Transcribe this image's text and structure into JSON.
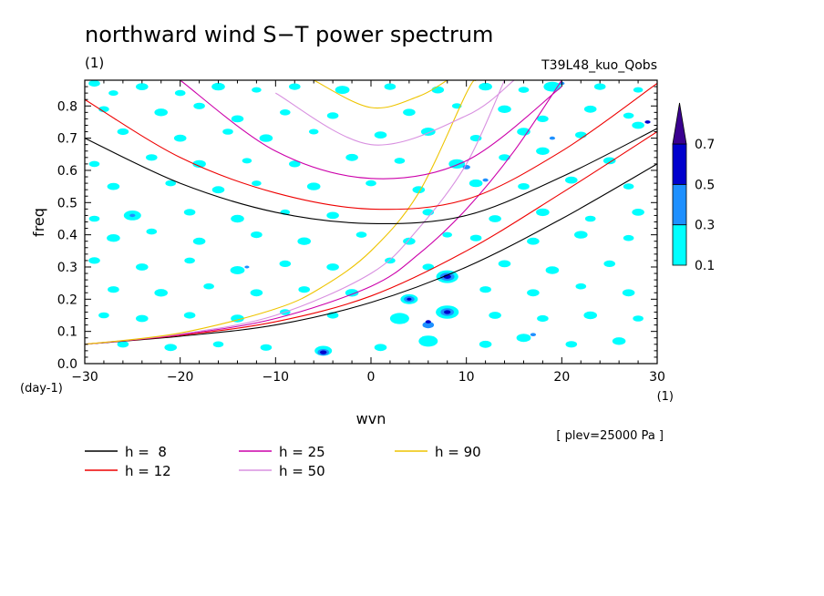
{
  "chart_data": {
    "type": "contour",
    "title": "northward wind S−T power spectrum",
    "subtitle": "(1)",
    "run_label": "T39L48_kuo_Qobs",
    "level_note": "[ plev=25000 Pa ]",
    "xlabel": "wvn",
    "x_unit": "(1)",
    "ylabel": "freq",
    "y_unit": "(day-1)",
    "xlim": [
      -30,
      30
    ],
    "ylim": [
      0,
      0.88
    ],
    "x_ticks": [
      {
        "value": -30,
        "label": "−30"
      },
      {
        "value": -20,
        "label": "−20"
      },
      {
        "value": -10,
        "label": "−10"
      },
      {
        "value": 0,
        "label": "0"
      },
      {
        "value": 10,
        "label": "10"
      },
      {
        "value": 20,
        "label": "20"
      },
      {
        "value": 30,
        "label": "30"
      }
    ],
    "y_ticks": [
      {
        "value": 0.0,
        "label": "0.0"
      },
      {
        "value": 0.1,
        "label": "0.1"
      },
      {
        "value": 0.2,
        "label": "0.2"
      },
      {
        "value": 0.3,
        "label": "0.3"
      },
      {
        "value": 0.4,
        "label": "0.4"
      },
      {
        "value": 0.5,
        "label": "0.5"
      },
      {
        "value": 0.6,
        "label": "0.6"
      },
      {
        "value": 0.7,
        "label": "0.7"
      },
      {
        "value": 0.8,
        "label": "0.8"
      }
    ],
    "colorbar": {
      "levels": [
        {
          "value": 0.1,
          "label": "0.1"
        },
        {
          "value": 0.3,
          "label": "0.3"
        },
        {
          "value": 0.5,
          "label": "0.5"
        },
        {
          "value": 0.7,
          "label": "0.7"
        }
      ],
      "colors": [
        "#00ffff",
        "#1e90ff",
        "#0000cd",
        "#3a0090"
      ]
    },
    "dispersion_curves": [
      {
        "name": "h =  8",
        "color": "#000000"
      },
      {
        "name": "h = 12",
        "color": "#ee0000"
      },
      {
        "name": "h = 25",
        "color": "#cc00aa"
      },
      {
        "name": "h = 50",
        "color": "#d890e0"
      },
      {
        "name": "h = 90",
        "color": "#eec400"
      }
    ],
    "curve_points": {
      "h8_rossby_gravity": [
        [
          -30,
          0.06
        ],
        [
          -20,
          0.085
        ],
        [
          -10,
          0.12
        ],
        [
          0,
          0.19
        ],
        [
          10,
          0.3
        ],
        [
          20,
          0.45
        ],
        [
          30,
          0.62
        ]
      ],
      "h12_rossby_gravity": [
        [
          -30,
          0.06
        ],
        [
          -20,
          0.088
        ],
        [
          -10,
          0.13
        ],
        [
          0,
          0.21
        ],
        [
          10,
          0.35
        ],
        [
          20,
          0.53
        ],
        [
          30,
          0.72
        ]
      ],
      "h25_rossby_gravity": [
        [
          -30,
          0.06
        ],
        [
          -20,
          0.09
        ],
        [
          -10,
          0.14
        ],
        [
          0,
          0.24
        ],
        [
          5,
          0.34
        ],
        [
          10,
          0.48
        ],
        [
          15,
          0.66
        ],
        [
          20,
          0.88
        ]
      ],
      "h50_rossby_gravity": [
        [
          -30,
          0.06
        ],
        [
          -20,
          0.092
        ],
        [
          -10,
          0.15
        ],
        [
          0,
          0.28
        ],
        [
          5,
          0.42
        ],
        [
          10,
          0.62
        ],
        [
          14,
          0.88
        ]
      ],
      "h90_rossby_gravity": [
        [
          -30,
          0.06
        ],
        [
          -20,
          0.095
        ],
        [
          -10,
          0.17
        ],
        [
          -5,
          0.24
        ],
        [
          0,
          0.35
        ],
        [
          5,
          0.53
        ],
        [
          10,
          0.84
        ],
        [
          11,
          0.88
        ]
      ],
      "h8_inertia_gravity": [
        [
          -30,
          0.7
        ],
        [
          -20,
          0.56
        ],
        [
          -10,
          0.47
        ],
        [
          0,
          0.435
        ],
        [
          10,
          0.46
        ],
        [
          20,
          0.58
        ],
        [
          30,
          0.73
        ]
      ],
      "h12_inertia_gravity": [
        [
          -30,
          0.82
        ],
        [
          -20,
          0.64
        ],
        [
          -10,
          0.53
        ],
        [
          0,
          0.48
        ],
        [
          10,
          0.51
        ],
        [
          20,
          0.66
        ],
        [
          30,
          0.87
        ]
      ],
      "h25_inertia_gravity": [
        [
          -20,
          0.88
        ],
        [
          -10,
          0.66
        ],
        [
          0,
          0.575
        ],
        [
          10,
          0.63
        ],
        [
          20,
          0.86
        ]
      ],
      "h50_inertia_gravity": [
        [
          -10,
          0.84
        ],
        [
          0,
          0.68
        ],
        [
          10,
          0.77
        ],
        [
          15,
          0.88
        ]
      ],
      "h90_inertia_gravity": [
        [
          -6,
          0.88
        ],
        [
          0,
          0.795
        ],
        [
          5,
          0.83
        ],
        [
          8,
          0.88
        ]
      ]
    },
    "blobs": [
      {
        "x": -29,
        "y": 0.87,
        "r": 1.2,
        "lvl": 0
      },
      {
        "x": -27,
        "y": 0.84,
        "r": 1.0,
        "lvl": 0
      },
      {
        "x": -24,
        "y": 0.86,
        "r": 1.3,
        "lvl": 0
      },
      {
        "x": -20,
        "y": 0.84,
        "r": 1.1,
        "lvl": 0
      },
      {
        "x": -16,
        "y": 0.86,
        "r": 1.4,
        "lvl": 0
      },
      {
        "x": -12,
        "y": 0.85,
        "r": 1.0,
        "lvl": 0
      },
      {
        "x": -8,
        "y": 0.86,
        "r": 1.2,
        "lvl": 0
      },
      {
        "x": -3,
        "y": 0.85,
        "r": 1.5,
        "lvl": 0
      },
      {
        "x": 2,
        "y": 0.86,
        "r": 1.2,
        "lvl": 0
      },
      {
        "x": 7,
        "y": 0.85,
        "r": 1.3,
        "lvl": 0
      },
      {
        "x": 12,
        "y": 0.86,
        "r": 1.4,
        "lvl": 0
      },
      {
        "x": 16,
        "y": 0.85,
        "r": 1.1,
        "lvl": 0
      },
      {
        "x": 19,
        "y": 0.86,
        "r": 1.8,
        "lvl": 0
      },
      {
        "x": 20,
        "y": 0.87,
        "r": 0.6,
        "lvl": 1
      },
      {
        "x": 24,
        "y": 0.86,
        "r": 1.2,
        "lvl": 0
      },
      {
        "x": 28,
        "y": 0.85,
        "r": 1.0,
        "lvl": 0
      },
      {
        "x": -28,
        "y": 0.79,
        "r": 1.1,
        "lvl": 0
      },
      {
        "x": -22,
        "y": 0.78,
        "r": 1.4,
        "lvl": 0
      },
      {
        "x": -18,
        "y": 0.8,
        "r": 1.2,
        "lvl": 0
      },
      {
        "x": -14,
        "y": 0.76,
        "r": 1.3,
        "lvl": 0
      },
      {
        "x": -9,
        "y": 0.78,
        "r": 1.1,
        "lvl": 0
      },
      {
        "x": -4,
        "y": 0.77,
        "r": 1.2,
        "lvl": 0
      },
      {
        "x": 4,
        "y": 0.78,
        "r": 1.3,
        "lvl": 0
      },
      {
        "x": 9,
        "y": 0.8,
        "r": 1.0,
        "lvl": 0
      },
      {
        "x": 14,
        "y": 0.79,
        "r": 1.4,
        "lvl": 0
      },
      {
        "x": 18,
        "y": 0.76,
        "r": 1.2,
        "lvl": 0
      },
      {
        "x": 23,
        "y": 0.79,
        "r": 1.3,
        "lvl": 0
      },
      {
        "x": 27,
        "y": 0.77,
        "r": 1.1,
        "lvl": 0
      },
      {
        "x": -26,
        "y": 0.72,
        "r": 1.2,
        "lvl": 0
      },
      {
        "x": -20,
        "y": 0.7,
        "r": 1.3,
        "lvl": 0
      },
      {
        "x": -15,
        "y": 0.72,
        "r": 1.1,
        "lvl": 0
      },
      {
        "x": -11,
        "y": 0.7,
        "r": 1.4,
        "lvl": 0
      },
      {
        "x": -6,
        "y": 0.72,
        "r": 1.0,
        "lvl": 0
      },
      {
        "x": 1,
        "y": 0.71,
        "r": 1.3,
        "lvl": 0
      },
      {
        "x": 6,
        "y": 0.72,
        "r": 1.5,
        "lvl": 0
      },
      {
        "x": 11,
        "y": 0.7,
        "r": 1.2,
        "lvl": 0
      },
      {
        "x": 16,
        "y": 0.72,
        "r": 1.4,
        "lvl": 0
      },
      {
        "x": 19,
        "y": 0.7,
        "r": 0.6,
        "lvl": 1
      },
      {
        "x": 22,
        "y": 0.71,
        "r": 1.2,
        "lvl": 0
      },
      {
        "x": 28,
        "y": 0.74,
        "r": 1.3,
        "lvl": 0
      },
      {
        "x": 29,
        "y": 0.75,
        "r": 0.6,
        "lvl": 2
      },
      {
        "x": -29,
        "y": 0.62,
        "r": 1.1,
        "lvl": 0
      },
      {
        "x": -23,
        "y": 0.64,
        "r": 1.2,
        "lvl": 0
      },
      {
        "x": -18,
        "y": 0.62,
        "r": 1.4,
        "lvl": 0
      },
      {
        "x": -13,
        "y": 0.63,
        "r": 1.0,
        "lvl": 0
      },
      {
        "x": -8,
        "y": 0.62,
        "r": 1.2,
        "lvl": 0
      },
      {
        "x": -2,
        "y": 0.64,
        "r": 1.3,
        "lvl": 0
      },
      {
        "x": 3,
        "y": 0.63,
        "r": 1.1,
        "lvl": 0
      },
      {
        "x": 9,
        "y": 0.62,
        "r": 1.7,
        "lvl": 0
      },
      {
        "x": 10,
        "y": 0.61,
        "r": 0.8,
        "lvl": 1
      },
      {
        "x": 14,
        "y": 0.64,
        "r": 1.2,
        "lvl": 0
      },
      {
        "x": 18,
        "y": 0.66,
        "r": 1.4,
        "lvl": 0
      },
      {
        "x": 25,
        "y": 0.63,
        "r": 1.3,
        "lvl": 0
      },
      {
        "x": -27,
        "y": 0.55,
        "r": 1.3,
        "lvl": 0
      },
      {
        "x": -21,
        "y": 0.56,
        "r": 1.1,
        "lvl": 0
      },
      {
        "x": -16,
        "y": 0.54,
        "r": 1.3,
        "lvl": 0
      },
      {
        "x": -12,
        "y": 0.56,
        "r": 1.0,
        "lvl": 0
      },
      {
        "x": -6,
        "y": 0.55,
        "r": 1.4,
        "lvl": 0
      },
      {
        "x": 0,
        "y": 0.56,
        "r": 1.1,
        "lvl": 0
      },
      {
        "x": 5,
        "y": 0.54,
        "r": 1.3,
        "lvl": 0
      },
      {
        "x": 11,
        "y": 0.56,
        "r": 1.4,
        "lvl": 0
      },
      {
        "x": 12,
        "y": 0.57,
        "r": 0.6,
        "lvl": 1
      },
      {
        "x": 16,
        "y": 0.55,
        "r": 1.2,
        "lvl": 0
      },
      {
        "x": 21,
        "y": 0.57,
        "r": 1.3,
        "lvl": 0
      },
      {
        "x": 27,
        "y": 0.55,
        "r": 1.1,
        "lvl": 0
      },
      {
        "x": -29,
        "y": 0.45,
        "r": 1.1,
        "lvl": 0
      },
      {
        "x": -25,
        "y": 0.46,
        "r": 1.8,
        "lvl": 0
      },
      {
        "x": -25,
        "y": 0.46,
        "r": 0.6,
        "lvl": 1
      },
      {
        "x": -19,
        "y": 0.47,
        "r": 1.2,
        "lvl": 0
      },
      {
        "x": -14,
        "y": 0.45,
        "r": 1.4,
        "lvl": 0
      },
      {
        "x": -9,
        "y": 0.47,
        "r": 1.0,
        "lvl": 0
      },
      {
        "x": -4,
        "y": 0.46,
        "r": 1.3,
        "lvl": 0
      },
      {
        "x": 6,
        "y": 0.47,
        "r": 1.2,
        "lvl": 0
      },
      {
        "x": 13,
        "y": 0.45,
        "r": 1.3,
        "lvl": 0
      },
      {
        "x": 18,
        "y": 0.47,
        "r": 1.4,
        "lvl": 0
      },
      {
        "x": 23,
        "y": 0.45,
        "r": 1.1,
        "lvl": 0
      },
      {
        "x": 28,
        "y": 0.47,
        "r": 1.3,
        "lvl": 0
      },
      {
        "x": -27,
        "y": 0.39,
        "r": 1.4,
        "lvl": 0
      },
      {
        "x": -23,
        "y": 0.41,
        "r": 1.1,
        "lvl": 0
      },
      {
        "x": -18,
        "y": 0.38,
        "r": 1.3,
        "lvl": 0
      },
      {
        "x": -12,
        "y": 0.4,
        "r": 1.2,
        "lvl": 0
      },
      {
        "x": -7,
        "y": 0.38,
        "r": 1.4,
        "lvl": 0
      },
      {
        "x": -1,
        "y": 0.4,
        "r": 1.1,
        "lvl": 0
      },
      {
        "x": 4,
        "y": 0.38,
        "r": 1.3,
        "lvl": 0
      },
      {
        "x": 8,
        "y": 0.4,
        "r": 1.0,
        "lvl": 0
      },
      {
        "x": 11,
        "y": 0.39,
        "r": 1.2,
        "lvl": 0
      },
      {
        "x": 17,
        "y": 0.38,
        "r": 1.3,
        "lvl": 0
      },
      {
        "x": 22,
        "y": 0.4,
        "r": 1.4,
        "lvl": 0
      },
      {
        "x": 27,
        "y": 0.39,
        "r": 1.1,
        "lvl": 0
      },
      {
        "x": -29,
        "y": 0.32,
        "r": 1.2,
        "lvl": 0
      },
      {
        "x": -24,
        "y": 0.3,
        "r": 1.3,
        "lvl": 0
      },
      {
        "x": -19,
        "y": 0.32,
        "r": 1.1,
        "lvl": 0
      },
      {
        "x": -14,
        "y": 0.29,
        "r": 1.5,
        "lvl": 0
      },
      {
        "x": -13,
        "y": 0.3,
        "r": 0.5,
        "lvl": 1
      },
      {
        "x": -9,
        "y": 0.31,
        "r": 1.2,
        "lvl": 0
      },
      {
        "x": -4,
        "y": 0.3,
        "r": 1.3,
        "lvl": 0
      },
      {
        "x": 2,
        "y": 0.32,
        "r": 1.1,
        "lvl": 0
      },
      {
        "x": 6,
        "y": 0.3,
        "r": 1.2,
        "lvl": 0
      },
      {
        "x": 14,
        "y": 0.31,
        "r": 1.3,
        "lvl": 0
      },
      {
        "x": 19,
        "y": 0.29,
        "r": 1.4,
        "lvl": 0
      },
      {
        "x": 25,
        "y": 0.31,
        "r": 1.2,
        "lvl": 0
      },
      {
        "x": -27,
        "y": 0.23,
        "r": 1.2,
        "lvl": 0
      },
      {
        "x": -22,
        "y": 0.22,
        "r": 1.4,
        "lvl": 0
      },
      {
        "x": -17,
        "y": 0.24,
        "r": 1.1,
        "lvl": 0
      },
      {
        "x": -12,
        "y": 0.22,
        "r": 1.3,
        "lvl": 0
      },
      {
        "x": -7,
        "y": 0.23,
        "r": 1.2,
        "lvl": 0
      },
      {
        "x": -2,
        "y": 0.22,
        "r": 1.4,
        "lvl": 0
      },
      {
        "x": 8,
        "y": 0.27,
        "r": 2.3,
        "lvl": 0
      },
      {
        "x": 8,
        "y": 0.27,
        "r": 1.5,
        "lvl": 1
      },
      {
        "x": 8,
        "y": 0.27,
        "r": 0.8,
        "lvl": 2
      },
      {
        "x": 12,
        "y": 0.23,
        "r": 1.2,
        "lvl": 0
      },
      {
        "x": 17,
        "y": 0.22,
        "r": 1.3,
        "lvl": 0
      },
      {
        "x": 22,
        "y": 0.24,
        "r": 1.1,
        "lvl": 0
      },
      {
        "x": 27,
        "y": 0.22,
        "r": 1.3,
        "lvl": 0
      },
      {
        "x": -28,
        "y": 0.15,
        "r": 1.1,
        "lvl": 0
      },
      {
        "x": -24,
        "y": 0.14,
        "r": 1.3,
        "lvl": 0
      },
      {
        "x": -19,
        "y": 0.15,
        "r": 1.2,
        "lvl": 0
      },
      {
        "x": -14,
        "y": 0.14,
        "r": 1.4,
        "lvl": 0
      },
      {
        "x": -9,
        "y": 0.16,
        "r": 1.1,
        "lvl": 0
      },
      {
        "x": -4,
        "y": 0.15,
        "r": 1.2,
        "lvl": 0
      },
      {
        "x": 4,
        "y": 0.2,
        "r": 1.8,
        "lvl": 0
      },
      {
        "x": 4,
        "y": 0.2,
        "r": 1.1,
        "lvl": 1
      },
      {
        "x": 4,
        "y": 0.2,
        "r": 0.5,
        "lvl": 2
      },
      {
        "x": 3,
        "y": 0.14,
        "r": 2.0,
        "lvl": 0
      },
      {
        "x": 8,
        "y": 0.16,
        "r": 2.4,
        "lvl": 0
      },
      {
        "x": 8,
        "y": 0.16,
        "r": 1.4,
        "lvl": 1
      },
      {
        "x": 8,
        "y": 0.16,
        "r": 0.7,
        "lvl": 2
      },
      {
        "x": 13,
        "y": 0.15,
        "r": 1.3,
        "lvl": 0
      },
      {
        "x": 18,
        "y": 0.14,
        "r": 1.2,
        "lvl": 0
      },
      {
        "x": 23,
        "y": 0.15,
        "r": 1.4,
        "lvl": 0
      },
      {
        "x": 28,
        "y": 0.14,
        "r": 1.1,
        "lvl": 0
      },
      {
        "x": -26,
        "y": 0.06,
        "r": 1.2,
        "lvl": 0
      },
      {
        "x": -21,
        "y": 0.05,
        "r": 1.3,
        "lvl": 0
      },
      {
        "x": -16,
        "y": 0.06,
        "r": 1.1,
        "lvl": 0
      },
      {
        "x": -11,
        "y": 0.05,
        "r": 1.2,
        "lvl": 0
      },
      {
        "x": -5,
        "y": 0.04,
        "r": 1.8,
        "lvl": 0
      },
      {
        "x": -5,
        "y": 0.035,
        "r": 1.2,
        "lvl": 1
      },
      {
        "x": -5,
        "y": 0.035,
        "r": 0.7,
        "lvl": 2
      },
      {
        "x": 1,
        "y": 0.05,
        "r": 1.3,
        "lvl": 0
      },
      {
        "x": 6,
        "y": 0.07,
        "r": 2.0,
        "lvl": 0
      },
      {
        "x": 6,
        "y": 0.12,
        "r": 1.2,
        "lvl": 1
      },
      {
        "x": 6,
        "y": 0.13,
        "r": 0.6,
        "lvl": 2
      },
      {
        "x": 12,
        "y": 0.06,
        "r": 1.3,
        "lvl": 0
      },
      {
        "x": 16,
        "y": 0.08,
        "r": 1.5,
        "lvl": 0
      },
      {
        "x": 17,
        "y": 0.09,
        "r": 0.6,
        "lvl": 1
      },
      {
        "x": 21,
        "y": 0.06,
        "r": 1.2,
        "lvl": 0
      },
      {
        "x": 26,
        "y": 0.07,
        "r": 1.4,
        "lvl": 0
      }
    ]
  }
}
